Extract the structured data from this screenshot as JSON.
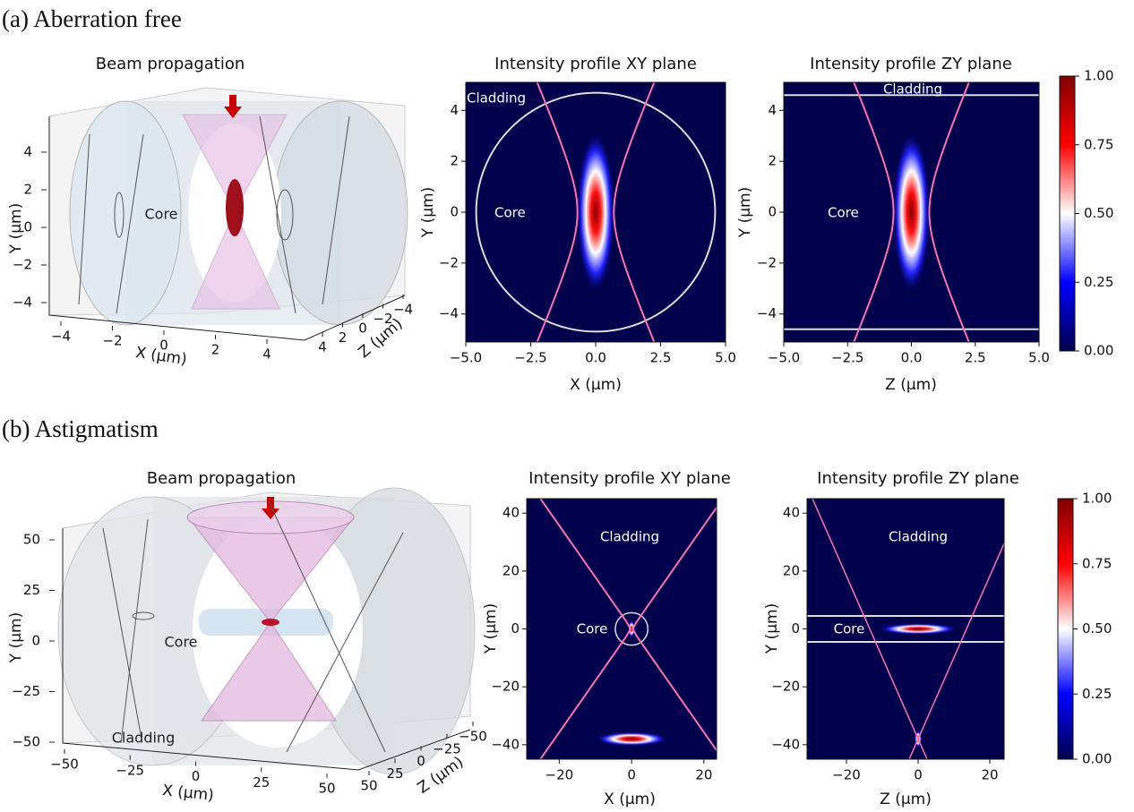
{
  "panels": [
    {
      "label": "(a) Aberration free"
    },
    {
      "label": "(b) Astigmatism"
    }
  ],
  "chart_data": [
    {
      "type": "surface3d",
      "title": "Beam propagation",
      "xlabel": "X (μm)",
      "ylabel": "Y (μm)",
      "zlabel": "Z (μm)",
      "xticks": [
        {
          "value": -4,
          "label": "−4"
        },
        {
          "value": -2,
          "label": "−2"
        },
        0,
        2,
        4
      ],
      "yticks": [
        {
          "value": -4,
          "label": "−4"
        },
        {
          "value": -2,
          "label": "−2"
        },
        0,
        2,
        4
      ],
      "zticks": [
        {
          "value": -4,
          "label": "−4"
        },
        {
          "value": -2,
          "label": "−2"
        },
        0,
        2,
        4
      ],
      "annotations": [
        "Core"
      ]
    },
    {
      "type": "heatmap",
      "title": "Intensity profile XY plane",
      "xlabel": "X (μm)",
      "ylabel": "Y (μm)",
      "xlim": [
        -5,
        5
      ],
      "ylim": [
        -5.1,
        5.1
      ],
      "xticks": [
        {
          "value": -5,
          "label": "−5.0"
        },
        {
          "value": -2.5,
          "label": "−2.5"
        },
        {
          "value": 0,
          "label": "0.0"
        },
        2.5,
        {
          "value": 5,
          "label": "5.0"
        }
      ],
      "yticks": [
        {
          "value": -4,
          "label": "−4"
        },
        {
          "value": -2,
          "label": "−2"
        },
        0,
        2,
        4
      ],
      "annotations": [
        "Cladding",
        "Core"
      ]
    },
    {
      "type": "heatmap",
      "title": "Intensity profile ZY plane",
      "xlabel": "Z (μm)",
      "ylabel": "Y (μm)",
      "xlim": [
        -5,
        5
      ],
      "ylim": [
        -5.1,
        5.1
      ],
      "xticks": [
        {
          "value": -5,
          "label": "−5.0"
        },
        {
          "value": -2.5,
          "label": "−2.5"
        },
        {
          "value": 0,
          "label": "0.0"
        },
        2.5,
        {
          "value": 5,
          "label": "5.0"
        }
      ],
      "yticks": [
        {
          "value": -4,
          "label": "−4"
        },
        {
          "value": -2,
          "label": "−2"
        },
        0,
        2,
        4
      ],
      "annotations": [
        "Cladding",
        "Core"
      ]
    },
    {
      "type": "colorbar",
      "clim": [
        0,
        1
      ],
      "colors": [
        "#00004c",
        "#0000ff",
        "#ffffff",
        "#ff0000",
        "#800000"
      ],
      "ticks": [
        {
          "value": 0,
          "label": "0.00"
        },
        {
          "value": 0.25,
          "label": "0.25"
        },
        {
          "value": 0.5,
          "label": "0.50"
        },
        {
          "value": 0.75,
          "label": "0.75"
        },
        {
          "value": 1,
          "label": "1.00"
        }
      ]
    },
    {
      "type": "surface3d",
      "title": "Beam propagation",
      "xlabel": "X (μm)",
      "ylabel": "Y (μm)",
      "zlabel": "Z (μm)",
      "xticks": [
        {
          "value": -50,
          "label": "−50"
        },
        {
          "value": -25,
          "label": "−25"
        },
        0,
        25,
        50
      ],
      "yticks": [
        {
          "value": -50,
          "label": "−50"
        },
        {
          "value": -25,
          "label": "−25"
        },
        0,
        25,
        50
      ],
      "zticks": [
        {
          "value": -50,
          "label": "−50"
        },
        {
          "value": -25,
          "label": "−25"
        },
        0,
        25,
        50
      ],
      "annotations": [
        "Core",
        "Cladding"
      ]
    },
    {
      "type": "heatmap",
      "title": "Intensity profile XY plane",
      "xlabel": "X (μm)",
      "ylabel": "Y (μm)",
      "xlim": [
        -29,
        23.5
      ],
      "ylim": [
        -45,
        45
      ],
      "xticks": [
        {
          "value": -20,
          "label": "−20"
        },
        0,
        20
      ],
      "yticks": [
        {
          "value": -40,
          "label": "−40"
        },
        {
          "value": -20,
          "label": "−20"
        },
        0,
        20,
        40
      ],
      "annotations": [
        "Cladding",
        "Core"
      ]
    },
    {
      "type": "heatmap",
      "title": "Intensity profile ZY plane",
      "xlabel": "Z (μm)",
      "ylabel": "Y (μm)",
      "xlim": [
        -31,
        24
      ],
      "ylim": [
        -45,
        45
      ],
      "xticks": [
        {
          "value": -20,
          "label": "−20"
        },
        0,
        20
      ],
      "yticks": [
        {
          "value": -40,
          "label": "−40"
        },
        {
          "value": -20,
          "label": "−20"
        },
        0,
        20,
        40
      ],
      "annotations": [
        "Cladding",
        "Core"
      ]
    },
    {
      "type": "colorbar",
      "clim": [
        0,
        1
      ],
      "colors": [
        "#00004c",
        "#0000ff",
        "#ffffff",
        "#ff0000",
        "#800000"
      ],
      "ticks": [
        {
          "value": 0,
          "label": "0.00"
        },
        {
          "value": 0.25,
          "label": "0.25"
        },
        {
          "value": 0.5,
          "label": "0.50"
        },
        {
          "value": 0.75,
          "label": "0.75"
        },
        {
          "value": 1,
          "label": "1.00"
        }
      ]
    }
  ]
}
